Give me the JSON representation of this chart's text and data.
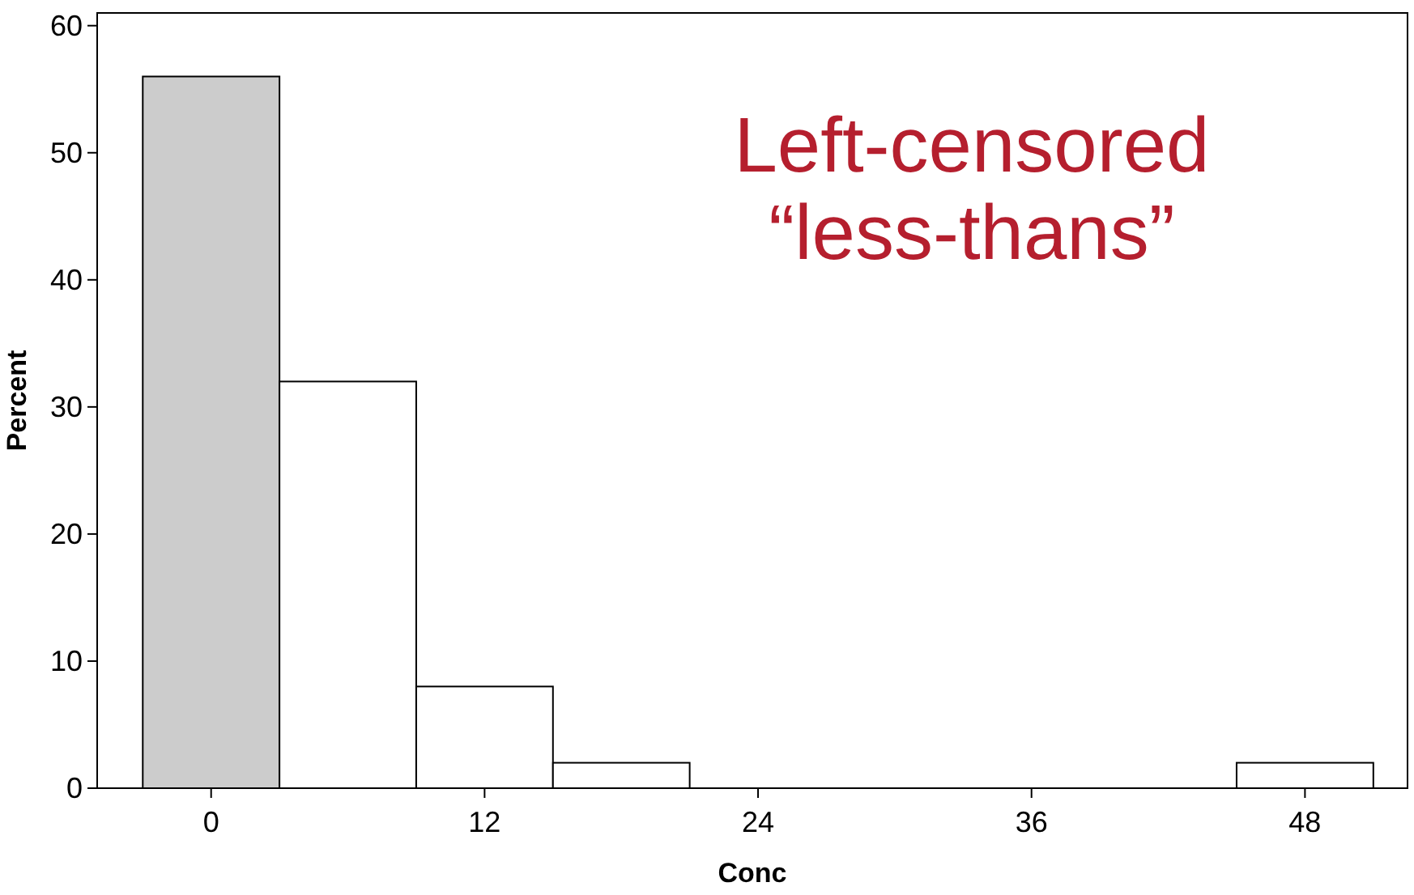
{
  "chart_data": {
    "type": "histogram",
    "xlabel": "Conc",
    "ylabel": "Percent",
    "bins": [
      -3,
      3,
      9,
      15,
      21,
      27,
      33,
      39,
      45,
      51
    ],
    "values": [
      56,
      32,
      8,
      2,
      0,
      0,
      0,
      0,
      2
    ],
    "colors": [
      "#cccccc",
      "#ffffff",
      "#ffffff",
      "#ffffff",
      "#ffffff",
      "#ffffff",
      "#ffffff",
      "#ffffff",
      "#ffffff"
    ],
    "xlim": [
      -5,
      52.5
    ],
    "ylim": [
      0,
      61
    ],
    "xticks": [
      0,
      12,
      24,
      36,
      48
    ],
    "yticks": [
      0,
      10,
      20,
      30,
      40,
      50,
      60
    ],
    "annotations": [
      "Left-censored\n“less-thans”"
    ],
    "grid": false
  }
}
